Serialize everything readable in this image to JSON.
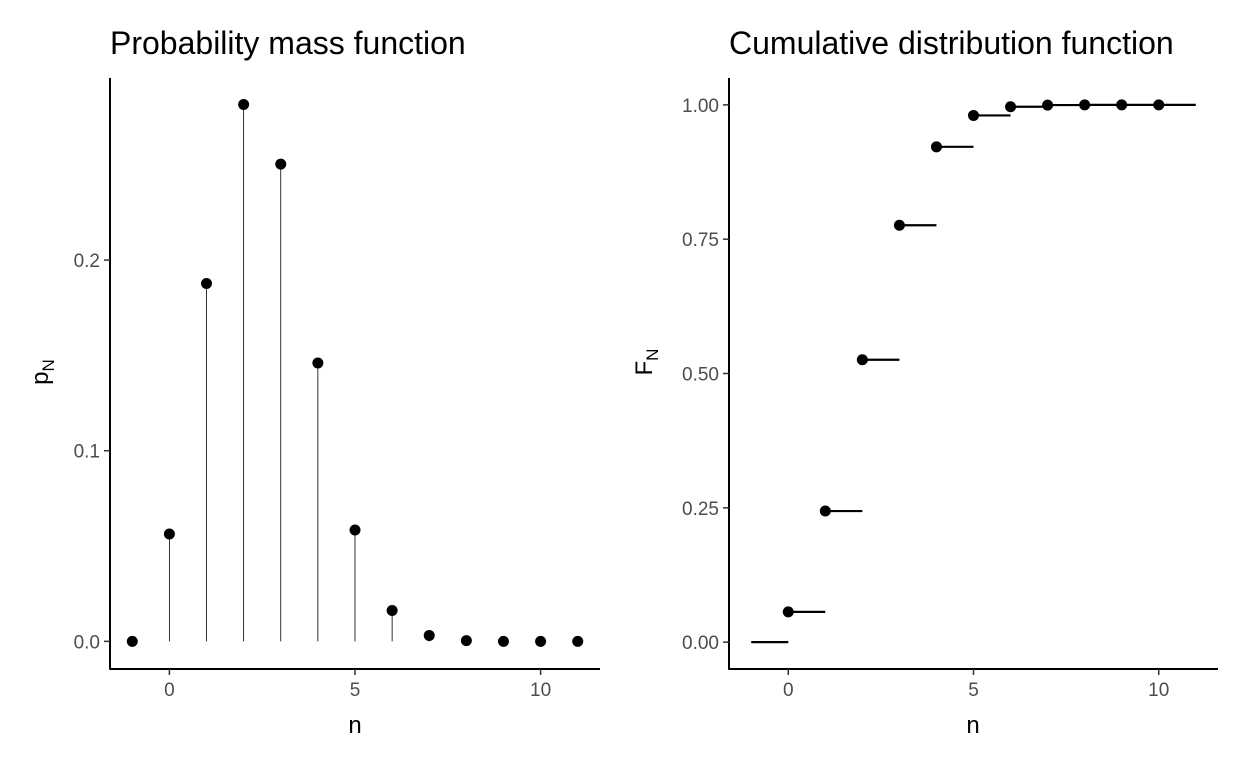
{
  "chart_data": [
    {
      "type": "scatter",
      "title": "Probability mass function",
      "xlabel": "n",
      "ylabel": {
        "main": "p",
        "sub": "N"
      },
      "xlim": [
        -1.6,
        11.6
      ],
      "ylim": [
        -0.0145,
        0.2955
      ],
      "xticks": [
        0,
        5,
        10
      ],
      "yticks": [
        0.0,
        0.1,
        0.2
      ],
      "ytick_labels": [
        "0.0",
        "0.1",
        "0.2"
      ],
      "grid": false,
      "series": [
        {
          "x": [
            -1,
            0,
            1,
            2,
            3,
            4,
            5,
            6,
            7,
            8,
            9,
            10,
            11
          ],
          "y": [
            0.0,
            0.0563,
            0.1877,
            0.2816,
            0.2503,
            0.146,
            0.0584,
            0.0162,
            0.0031,
            0.0004,
            0.0,
            0.0,
            0.0
          ]
        }
      ]
    },
    {
      "type": "line",
      "title": "Cumulative distribution function",
      "xlabel": "n",
      "ylabel": {
        "main": "F",
        "sub": "N"
      },
      "xlim": [
        -1.6,
        11.6
      ],
      "ylim": [
        -0.05,
        1.05
      ],
      "xticks": [
        0,
        5,
        10
      ],
      "yticks": [
        0.0,
        0.25,
        0.5,
        0.75,
        1.0
      ],
      "ytick_labels": [
        "0.00",
        "0.25",
        "0.50",
        "0.75",
        "1.00"
      ],
      "grid": false,
      "series": [
        {
          "x": [
            -1,
            0,
            1,
            2,
            3,
            4,
            5,
            6,
            7,
            8,
            9,
            10,
            11
          ],
          "y": [
            0.0,
            0.0563,
            0.244,
            0.5256,
            0.7759,
            0.9219,
            0.9803,
            0.9965,
            0.9996,
            1.0,
            1.0,
            1.0,
            1.0
          ]
        }
      ]
    }
  ]
}
